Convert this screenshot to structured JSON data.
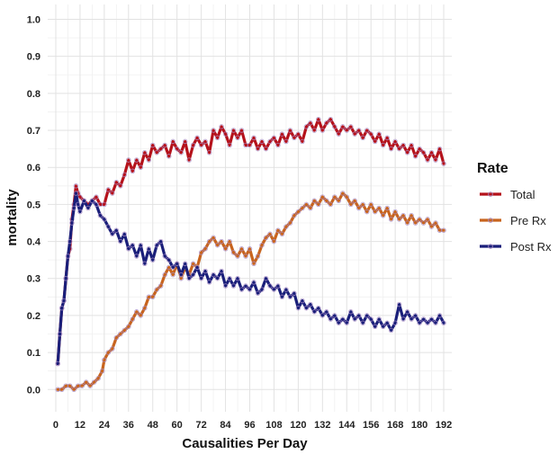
{
  "chart_data": {
    "type": "line",
    "title": "",
    "xlabel": "Causalities Per Day",
    "ylabel": "mortality",
    "xlim": [
      -4,
      196
    ],
    "ylim": [
      -0.06,
      1.04
    ],
    "x_ticks": [
      0,
      12,
      24,
      36,
      48,
      60,
      72,
      84,
      96,
      108,
      120,
      132,
      144,
      156,
      168,
      180,
      192
    ],
    "y_ticks": [
      0.0,
      0.1,
      0.2,
      0.3,
      0.4,
      0.5,
      0.6,
      0.7,
      0.8,
      0.9,
      1.0
    ],
    "grid": true,
    "legend": {
      "title": "Rate",
      "position": "right"
    },
    "series": [
      {
        "name": "Total",
        "color": "#b5121b",
        "points": [
          [
            1,
            0.07
          ],
          [
            2,
            0.15
          ],
          [
            3,
            0.22
          ],
          [
            4,
            0.24
          ],
          [
            5,
            0.3
          ],
          [
            6,
            0.36
          ],
          [
            7,
            0.38
          ],
          [
            8,
            0.46
          ],
          [
            9,
            0.5
          ],
          [
            10,
            0.55
          ],
          [
            11,
            0.53
          ],
          [
            12,
            0.52
          ],
          [
            14,
            0.51
          ],
          [
            16,
            0.5
          ],
          [
            18,
            0.51
          ],
          [
            20,
            0.52
          ],
          [
            22,
            0.5
          ],
          [
            24,
            0.5
          ],
          [
            26,
            0.54
          ],
          [
            28,
            0.53
          ],
          [
            30,
            0.56
          ],
          [
            32,
            0.55
          ],
          [
            34,
            0.58
          ],
          [
            36,
            0.62
          ],
          [
            38,
            0.59
          ],
          [
            40,
            0.62
          ],
          [
            42,
            0.6
          ],
          [
            44,
            0.64
          ],
          [
            46,
            0.62
          ],
          [
            48,
            0.66
          ],
          [
            50,
            0.64
          ],
          [
            52,
            0.65
          ],
          [
            54,
            0.66
          ],
          [
            56,
            0.63
          ],
          [
            58,
            0.67
          ],
          [
            60,
            0.65
          ],
          [
            62,
            0.64
          ],
          [
            64,
            0.67
          ],
          [
            66,
            0.62
          ],
          [
            68,
            0.66
          ],
          [
            70,
            0.68
          ],
          [
            72,
            0.66
          ],
          [
            74,
            0.67
          ],
          [
            76,
            0.64
          ],
          [
            78,
            0.7
          ],
          [
            80,
            0.68
          ],
          [
            82,
            0.71
          ],
          [
            84,
            0.69
          ],
          [
            86,
            0.66
          ],
          [
            88,
            0.7
          ],
          [
            90,
            0.68
          ],
          [
            92,
            0.7
          ],
          [
            94,
            0.66
          ],
          [
            96,
            0.66
          ],
          [
            98,
            0.68
          ],
          [
            100,
            0.65
          ],
          [
            102,
            0.67
          ],
          [
            104,
            0.65
          ],
          [
            106,
            0.67
          ],
          [
            108,
            0.68
          ],
          [
            110,
            0.66
          ],
          [
            112,
            0.69
          ],
          [
            114,
            0.67
          ],
          [
            116,
            0.7
          ],
          [
            118,
            0.68
          ],
          [
            120,
            0.69
          ],
          [
            122,
            0.67
          ],
          [
            124,
            0.71
          ],
          [
            126,
            0.72
          ],
          [
            128,
            0.7
          ],
          [
            130,
            0.73
          ],
          [
            132,
            0.7
          ],
          [
            134,
            0.72
          ],
          [
            136,
            0.73
          ],
          [
            138,
            0.71
          ],
          [
            140,
            0.69
          ],
          [
            142,
            0.71
          ],
          [
            144,
            0.7
          ],
          [
            146,
            0.71
          ],
          [
            148,
            0.69
          ],
          [
            150,
            0.7
          ],
          [
            152,
            0.68
          ],
          [
            154,
            0.7
          ],
          [
            156,
            0.69
          ],
          [
            158,
            0.67
          ],
          [
            160,
            0.69
          ],
          [
            162,
            0.66
          ],
          [
            164,
            0.68
          ],
          [
            166,
            0.65
          ],
          [
            168,
            0.67
          ],
          [
            170,
            0.65
          ],
          [
            172,
            0.66
          ],
          [
            174,
            0.64
          ],
          [
            176,
            0.66
          ],
          [
            178,
            0.63
          ],
          [
            180,
            0.65
          ],
          [
            182,
            0.64
          ],
          [
            184,
            0.62
          ],
          [
            186,
            0.64
          ],
          [
            188,
            0.62
          ],
          [
            190,
            0.65
          ],
          [
            192,
            0.61
          ]
        ]
      },
      {
        "name": "Pre Rx",
        "color": "#c8641e",
        "points": [
          [
            1,
            0.0
          ],
          [
            3,
            0.0
          ],
          [
            5,
            0.01
          ],
          [
            7,
            0.01
          ],
          [
            9,
            0.0
          ],
          [
            11,
            0.01
          ],
          [
            13,
            0.01
          ],
          [
            15,
            0.02
          ],
          [
            17,
            0.01
          ],
          [
            19,
            0.02
          ],
          [
            21,
            0.03
          ],
          [
            23,
            0.05
          ],
          [
            24,
            0.08
          ],
          [
            26,
            0.1
          ],
          [
            28,
            0.11
          ],
          [
            30,
            0.14
          ],
          [
            32,
            0.15
          ],
          [
            34,
            0.16
          ],
          [
            36,
            0.17
          ],
          [
            38,
            0.19
          ],
          [
            40,
            0.21
          ],
          [
            42,
            0.2
          ],
          [
            44,
            0.22
          ],
          [
            46,
            0.25
          ],
          [
            48,
            0.25
          ],
          [
            50,
            0.27
          ],
          [
            52,
            0.28
          ],
          [
            54,
            0.31
          ],
          [
            56,
            0.33
          ],
          [
            58,
            0.31
          ],
          [
            60,
            0.34
          ],
          [
            62,
            0.3
          ],
          [
            64,
            0.33
          ],
          [
            66,
            0.31
          ],
          [
            68,
            0.34
          ],
          [
            70,
            0.33
          ],
          [
            72,
            0.37
          ],
          [
            74,
            0.38
          ],
          [
            76,
            0.4
          ],
          [
            78,
            0.41
          ],
          [
            80,
            0.39
          ],
          [
            82,
            0.4
          ],
          [
            84,
            0.38
          ],
          [
            86,
            0.4
          ],
          [
            88,
            0.37
          ],
          [
            90,
            0.36
          ],
          [
            92,
            0.38
          ],
          [
            94,
            0.36
          ],
          [
            96,
            0.38
          ],
          [
            98,
            0.34
          ],
          [
            100,
            0.36
          ],
          [
            102,
            0.39
          ],
          [
            104,
            0.41
          ],
          [
            106,
            0.42
          ],
          [
            108,
            0.4
          ],
          [
            110,
            0.43
          ],
          [
            112,
            0.42
          ],
          [
            114,
            0.44
          ],
          [
            116,
            0.45
          ],
          [
            118,
            0.47
          ],
          [
            120,
            0.48
          ],
          [
            122,
            0.49
          ],
          [
            124,
            0.5
          ],
          [
            126,
            0.49
          ],
          [
            128,
            0.51
          ],
          [
            130,
            0.5
          ],
          [
            132,
            0.52
          ],
          [
            134,
            0.51
          ],
          [
            136,
            0.5
          ],
          [
            138,
            0.52
          ],
          [
            140,
            0.51
          ],
          [
            142,
            0.53
          ],
          [
            144,
            0.52
          ],
          [
            146,
            0.5
          ],
          [
            148,
            0.51
          ],
          [
            150,
            0.49
          ],
          [
            152,
            0.5
          ],
          [
            154,
            0.48
          ],
          [
            156,
            0.5
          ],
          [
            158,
            0.48
          ],
          [
            160,
            0.49
          ],
          [
            162,
            0.47
          ],
          [
            164,
            0.49
          ],
          [
            166,
            0.46
          ],
          [
            168,
            0.48
          ],
          [
            170,
            0.46
          ],
          [
            172,
            0.47
          ],
          [
            174,
            0.45
          ],
          [
            176,
            0.47
          ],
          [
            178,
            0.45
          ],
          [
            180,
            0.46
          ],
          [
            182,
            0.45
          ],
          [
            184,
            0.46
          ],
          [
            186,
            0.44
          ],
          [
            188,
            0.45
          ],
          [
            190,
            0.43
          ],
          [
            192,
            0.43
          ]
        ]
      },
      {
        "name": "Post Rx",
        "color": "#1a1f7a",
        "points": [
          [
            1,
            0.07
          ],
          [
            2,
            0.15
          ],
          [
            3,
            0.22
          ],
          [
            4,
            0.24
          ],
          [
            5,
            0.3
          ],
          [
            6,
            0.36
          ],
          [
            7,
            0.4
          ],
          [
            8,
            0.45
          ],
          [
            9,
            0.49
          ],
          [
            10,
            0.53
          ],
          [
            11,
            0.5
          ],
          [
            12,
            0.48
          ],
          [
            14,
            0.51
          ],
          [
            16,
            0.49
          ],
          [
            18,
            0.51
          ],
          [
            20,
            0.5
          ],
          [
            22,
            0.47
          ],
          [
            24,
            0.46
          ],
          [
            26,
            0.44
          ],
          [
            28,
            0.42
          ],
          [
            30,
            0.43
          ],
          [
            32,
            0.4
          ],
          [
            34,
            0.42
          ],
          [
            36,
            0.38
          ],
          [
            38,
            0.39
          ],
          [
            40,
            0.36
          ],
          [
            42,
            0.39
          ],
          [
            44,
            0.34
          ],
          [
            46,
            0.38
          ],
          [
            48,
            0.35
          ],
          [
            50,
            0.39
          ],
          [
            52,
            0.4
          ],
          [
            54,
            0.36
          ],
          [
            56,
            0.35
          ],
          [
            58,
            0.33
          ],
          [
            60,
            0.34
          ],
          [
            62,
            0.31
          ],
          [
            64,
            0.34
          ],
          [
            66,
            0.3
          ],
          [
            68,
            0.31
          ],
          [
            70,
            0.33
          ],
          [
            72,
            0.3
          ],
          [
            74,
            0.32
          ],
          [
            76,
            0.29
          ],
          [
            78,
            0.31
          ],
          [
            80,
            0.3
          ],
          [
            82,
            0.32
          ],
          [
            84,
            0.28
          ],
          [
            86,
            0.3
          ],
          [
            88,
            0.28
          ],
          [
            90,
            0.3
          ],
          [
            92,
            0.27
          ],
          [
            94,
            0.28
          ],
          [
            96,
            0.27
          ],
          [
            98,
            0.29
          ],
          [
            100,
            0.26
          ],
          [
            102,
            0.27
          ],
          [
            104,
            0.3
          ],
          [
            106,
            0.28
          ],
          [
            108,
            0.27
          ],
          [
            110,
            0.28
          ],
          [
            112,
            0.25
          ],
          [
            114,
            0.27
          ],
          [
            116,
            0.25
          ],
          [
            118,
            0.26
          ],
          [
            120,
            0.22
          ],
          [
            122,
            0.24
          ],
          [
            124,
            0.22
          ],
          [
            126,
            0.23
          ],
          [
            128,
            0.21
          ],
          [
            130,
            0.22
          ],
          [
            132,
            0.2
          ],
          [
            134,
            0.21
          ],
          [
            136,
            0.19
          ],
          [
            138,
            0.2
          ],
          [
            140,
            0.18
          ],
          [
            142,
            0.19
          ],
          [
            144,
            0.18
          ],
          [
            146,
            0.21
          ],
          [
            148,
            0.19
          ],
          [
            150,
            0.2
          ],
          [
            152,
            0.18
          ],
          [
            154,
            0.2
          ],
          [
            156,
            0.19
          ],
          [
            158,
            0.17
          ],
          [
            160,
            0.19
          ],
          [
            162,
            0.17
          ],
          [
            164,
            0.18
          ],
          [
            166,
            0.16
          ],
          [
            168,
            0.18
          ],
          [
            170,
            0.23
          ],
          [
            172,
            0.19
          ],
          [
            174,
            0.21
          ],
          [
            176,
            0.19
          ],
          [
            178,
            0.2
          ],
          [
            180,
            0.18
          ],
          [
            182,
            0.19
          ],
          [
            184,
            0.18
          ],
          [
            186,
            0.19
          ],
          [
            188,
            0.18
          ],
          [
            190,
            0.2
          ],
          [
            192,
            0.18
          ]
        ]
      }
    ]
  }
}
